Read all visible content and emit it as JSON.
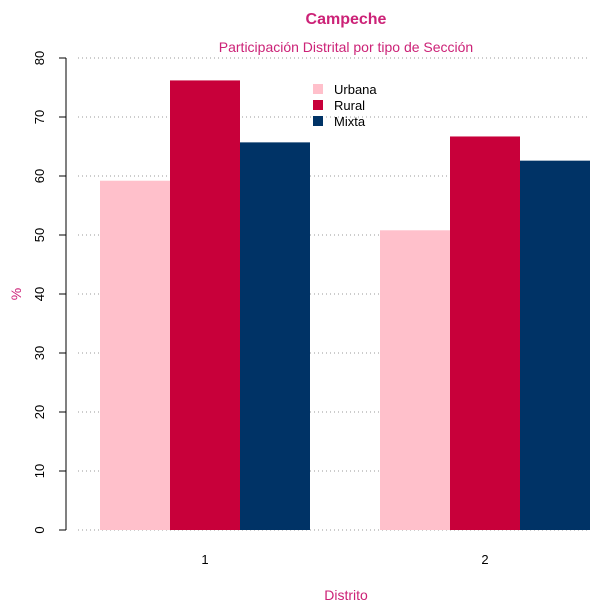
{
  "chart_data": {
    "type": "bar",
    "title": "Campeche",
    "subtitle": "Participación Distrital por tipo de Sección",
    "xlabel": "Distrito",
    "ylabel": "%",
    "categories": [
      "1",
      "2"
    ],
    "series": [
      {
        "name": "Urbana",
        "color": "#ffc0cb",
        "values": [
          59.2,
          50.8
        ]
      },
      {
        "name": "Rural",
        "color": "#c8003a",
        "values": [
          76.2,
          66.7
        ]
      },
      {
        "name": "Mixta",
        "color": "#003366",
        "values": [
          65.7,
          62.6
        ]
      }
    ],
    "ylim": [
      0,
      80
    ],
    "yticks": [
      0,
      10,
      20,
      30,
      40,
      50,
      60,
      70,
      80
    ],
    "grid": "horizontal-dotted",
    "legend_position": "top-center",
    "text_color": "#cc2277"
  }
}
